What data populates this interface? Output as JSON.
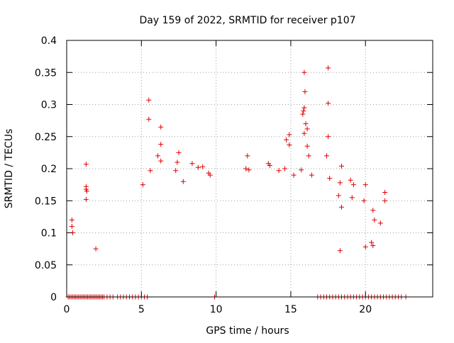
{
  "chart_data": {
    "type": "scatter",
    "title": "Day 159 of 2022, SRMTID for receiver p107",
    "xlabel": "GPS time / hours",
    "ylabel": "SRMTID / TECUs",
    "xlim": [
      0,
      24.5
    ],
    "ylim": [
      0,
      0.4
    ],
    "x_ticks": [
      0,
      5,
      10,
      15,
      20
    ],
    "x_tick_labels": [
      "0",
      "5",
      "10",
      "15",
      "20"
    ],
    "y_ticks": [
      0,
      0.05,
      0.1,
      0.15,
      0.2,
      0.25,
      0.3,
      0.35,
      0.4
    ],
    "y_tick_labels": [
      "0",
      "0.05",
      "0.1",
      "0.15",
      "0.2",
      "0.25",
      "0.3",
      "0.35",
      "0.4"
    ],
    "grid": true,
    "legend": "none",
    "marker": "+",
    "marker_color": "#e00000",
    "series": [
      {
        "name": "SRMTID",
        "points": [
          [
            0.1,
            0
          ],
          [
            0.2,
            0
          ],
          [
            0.3,
            0
          ],
          [
            0.4,
            0
          ],
          [
            0.5,
            0
          ],
          [
            0.6,
            0
          ],
          [
            0.7,
            0
          ],
          [
            0.8,
            0
          ],
          [
            0.9,
            0
          ],
          [
            1.0,
            0
          ],
          [
            1.1,
            0
          ],
          [
            1.2,
            0
          ],
          [
            1.3,
            0
          ],
          [
            1.4,
            0
          ],
          [
            1.5,
            0
          ],
          [
            1.6,
            0
          ],
          [
            1.7,
            0
          ],
          [
            1.8,
            0
          ],
          [
            1.9,
            0
          ],
          [
            2.0,
            0
          ],
          [
            2.1,
            0
          ],
          [
            2.2,
            0
          ],
          [
            2.3,
            0
          ],
          [
            2.4,
            0
          ],
          [
            2.5,
            0
          ],
          [
            2.7,
            0
          ],
          [
            2.9,
            0
          ],
          [
            3.1,
            0
          ],
          [
            3.4,
            0
          ],
          [
            3.6,
            0
          ],
          [
            3.8,
            0
          ],
          [
            4.0,
            0
          ],
          [
            4.2,
            0
          ],
          [
            4.4,
            0
          ],
          [
            4.6,
            0
          ],
          [
            4.8,
            0
          ],
          [
            5.0,
            0
          ],
          [
            5.2,
            0
          ],
          [
            5.4,
            0
          ],
          [
            9.9,
            0
          ],
          [
            16.8,
            0
          ],
          [
            17.0,
            0
          ],
          [
            17.2,
            0
          ],
          [
            17.4,
            0
          ],
          [
            17.6,
            0
          ],
          [
            17.8,
            0
          ],
          [
            18.0,
            0
          ],
          [
            18.2,
            0
          ],
          [
            18.4,
            0
          ],
          [
            18.6,
            0
          ],
          [
            18.8,
            0
          ],
          [
            19.0,
            0
          ],
          [
            19.2,
            0
          ],
          [
            19.4,
            0
          ],
          [
            19.6,
            0
          ],
          [
            19.8,
            0
          ],
          [
            20.0,
            0
          ],
          [
            20.2,
            0
          ],
          [
            20.4,
            0
          ],
          [
            20.6,
            0
          ],
          [
            20.8,
            0
          ],
          [
            21.0,
            0
          ],
          [
            21.2,
            0
          ],
          [
            21.4,
            0
          ],
          [
            21.6,
            0
          ],
          [
            21.8,
            0
          ],
          [
            22.0,
            0
          ],
          [
            22.2,
            0
          ],
          [
            22.4,
            0
          ],
          [
            22.7,
            0
          ],
          [
            0.35,
            0.12
          ],
          [
            0.35,
            0.11
          ],
          [
            0.4,
            0.1
          ],
          [
            1.3,
            0.207
          ],
          [
            1.3,
            0.172
          ],
          [
            1.3,
            0.168
          ],
          [
            1.35,
            0.165
          ],
          [
            1.3,
            0.152
          ],
          [
            1.95,
            0.075
          ],
          [
            5.1,
            0.175
          ],
          [
            5.5,
            0.307
          ],
          [
            5.5,
            0.277
          ],
          [
            5.6,
            0.197
          ],
          [
            6.3,
            0.265
          ],
          [
            6.3,
            0.238
          ],
          [
            6.1,
            0.22
          ],
          [
            6.3,
            0.212
          ],
          [
            7.5,
            0.225
          ],
          [
            7.3,
            0.197
          ],
          [
            7.4,
            0.21
          ],
          [
            7.8,
            0.18
          ],
          [
            8.4,
            0.208
          ],
          [
            8.8,
            0.202
          ],
          [
            9.1,
            0.203
          ],
          [
            9.5,
            0.193
          ],
          [
            9.6,
            0.19
          ],
          [
            12.1,
            0.22
          ],
          [
            12.0,
            0.2
          ],
          [
            12.2,
            0.198
          ],
          [
            13.5,
            0.208
          ],
          [
            13.6,
            0.205
          ],
          [
            14.2,
            0.197
          ],
          [
            14.7,
            0.245
          ],
          [
            14.9,
            0.253
          ],
          [
            14.9,
            0.237
          ],
          [
            14.6,
            0.2
          ],
          [
            15.2,
            0.19
          ],
          [
            15.7,
            0.198
          ],
          [
            15.9,
            0.35
          ],
          [
            15.95,
            0.32
          ],
          [
            15.9,
            0.295
          ],
          [
            15.85,
            0.29
          ],
          [
            15.8,
            0.285
          ],
          [
            16.0,
            0.27
          ],
          [
            16.1,
            0.262
          ],
          [
            15.9,
            0.255
          ],
          [
            16.1,
            0.235
          ],
          [
            16.2,
            0.22
          ],
          [
            16.4,
            0.19
          ],
          [
            17.5,
            0.357
          ],
          [
            17.5,
            0.302
          ],
          [
            17.5,
            0.25
          ],
          [
            17.4,
            0.22
          ],
          [
            17.6,
            0.185
          ],
          [
            18.4,
            0.204
          ],
          [
            18.3,
            0.178
          ],
          [
            18.2,
            0.158
          ],
          [
            18.4,
            0.14
          ],
          [
            18.3,
            0.072
          ],
          [
            19.0,
            0.182
          ],
          [
            19.2,
            0.175
          ],
          [
            19.1,
            0.155
          ],
          [
            20.0,
            0.175
          ],
          [
            19.9,
            0.15
          ],
          [
            21.3,
            0.163
          ],
          [
            21.3,
            0.15
          ],
          [
            20.5,
            0.135
          ],
          [
            20.6,
            0.12
          ],
          [
            21.0,
            0.115
          ],
          [
            20.4,
            0.085
          ],
          [
            20.5,
            0.08
          ],
          [
            20.0,
            0.078
          ]
        ]
      }
    ]
  }
}
